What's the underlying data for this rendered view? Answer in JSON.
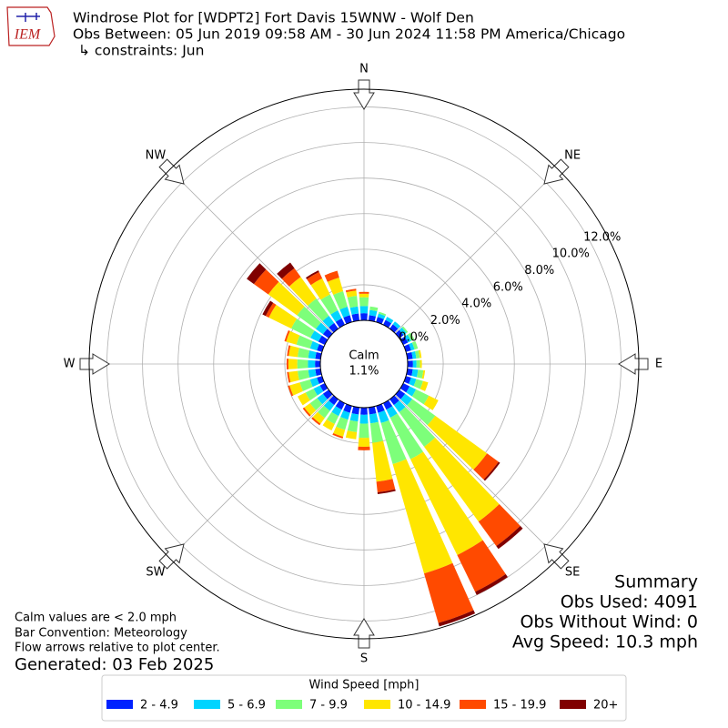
{
  "chart_data": {
    "type": "windrose",
    "logo_text": "IEM",
    "title": [
      "Windrose Plot for [WDPT2] Fort Davis 15WNW - Wolf Den",
      "Obs Between: 05 Jun 2019 09:58 AM - 30 Jun 2024 11:58 PM America/Chicago",
      "↳ constraints: Jun"
    ],
    "x": [
      0,
      10,
      20,
      30,
      40,
      50,
      60,
      70,
      80,
      90,
      100,
      110,
      120,
      130,
      140,
      150,
      160,
      170,
      180,
      190,
      200,
      210,
      220,
      230,
      240,
      250,
      260,
      270,
      280,
      290,
      300,
      310,
      320,
      330,
      340,
      350
    ],
    "xlim": [
      0,
      360
    ],
    "xticks": [
      {
        "value": 0,
        "label": "N"
      },
      {
        "value": 45,
        "label": "NE"
      },
      {
        "value": 90,
        "label": "E"
      },
      {
        "value": 135,
        "label": "SE"
      },
      {
        "value": 180,
        "label": "S"
      },
      {
        "value": 225,
        "label": "SW"
      },
      {
        "value": 270,
        "label": "W"
      },
      {
        "value": 315,
        "label": "NW"
      }
    ],
    "ylim": [
      0,
      13
    ],
    "yticks": [
      {
        "value": 0,
        "label": "0.0%"
      },
      {
        "value": 2,
        "label": "2.0%"
      },
      {
        "value": 4,
        "label": "4.0%"
      },
      {
        "value": 6,
        "label": "6.0%"
      },
      {
        "value": 8,
        "label": "8.0%"
      },
      {
        "value": 10,
        "label": "10.0%"
      },
      {
        "value": 12,
        "label": "12.0%"
      }
    ],
    "grid": true,
    "calm": {
      "label": "Calm",
      "value": 1.1,
      "value_label": "1.1%"
    },
    "legend_title": "Wind Speed [mph]",
    "series": [
      {
        "name": "2 - 4.9",
        "color": "#0022ff",
        "values": [
          0.4,
          0.3,
          0.3,
          0.3,
          0.3,
          0.3,
          0.3,
          0.3,
          0.3,
          0.3,
          0.3,
          0.3,
          0.4,
          0.4,
          0.4,
          0.4,
          0.4,
          0.4,
          0.4,
          0.4,
          0.4,
          0.4,
          0.4,
          0.4,
          0.3,
          0.3,
          0.3,
          0.3,
          0.3,
          0.3,
          0.4,
          0.4,
          0.4,
          0.4,
          0.4,
          0.4
        ]
      },
      {
        "name": "5 - 6.9",
        "color": "#00d4ff",
        "values": [
          0.4,
          0.3,
          0.2,
          0.2,
          0.2,
          0.2,
          0.2,
          0.2,
          0.2,
          0.2,
          0.3,
          0.3,
          0.4,
          0.5,
          0.5,
          0.5,
          0.6,
          0.5,
          0.5,
          0.4,
          0.4,
          0.4,
          0.4,
          0.4,
          0.4,
          0.4,
          0.4,
          0.4,
          0.4,
          0.4,
          0.5,
          0.5,
          0.5,
          0.5,
          0.5,
          0.4
        ]
      },
      {
        "name": "7 - 9.9",
        "color": "#7dff7a",
        "values": [
          0.5,
          0.2,
          0.1,
          0,
          0,
          0.1,
          0.2,
          0.2,
          0.2,
          0.2,
          0.3,
          0.4,
          0.8,
          1.6,
          2.4,
          2.6,
          2.4,
          1.1,
          0.8,
          0.6,
          0.6,
          0.5,
          0.5,
          0.5,
          0.5,
          0.6,
          0.6,
          0.6,
          0.6,
          0.8,
          1.2,
          1.3,
          1.2,
          1.0,
          0.9,
          0.6
        ]
      },
      {
        "name": "10 - 14.9",
        "color": "#ffe600",
        "values": [
          0.2,
          0,
          0,
          0,
          0,
          0,
          0,
          0,
          0.1,
          0.1,
          0.1,
          0.3,
          0.6,
          3.6,
          5.2,
          6.0,
          6.4,
          2.2,
          0.5,
          0.4,
          0.4,
          0.4,
          0.4,
          0.4,
          0.5,
          0.6,
          0.5,
          0.5,
          0.5,
          0.6,
          1.4,
          2.0,
          1.5,
          1.0,
          0.8,
          0.3
        ]
      },
      {
        "name": "15 - 19.9",
        "color": "#ff4a00",
        "values": [
          0.1,
          0,
          0,
          0,
          0,
          0,
          0,
          0,
          0,
          0,
          0,
          0,
          0,
          0.8,
          1.7,
          2.3,
          2.9,
          0.6,
          0.2,
          0,
          0.1,
          0,
          0.1,
          0.1,
          0,
          0.1,
          0.1,
          0.1,
          0.1,
          0.1,
          0.2,
          1.0,
          0.6,
          0.4,
          0.4,
          0.1
        ]
      },
      {
        "name": "20+",
        "color": "#800000",
        "values": [
          0,
          0,
          0,
          0,
          0,
          0,
          0,
          0,
          0,
          0,
          0,
          0,
          0,
          0.1,
          0.2,
          0.2,
          0.2,
          0.1,
          0,
          0,
          0,
          0,
          0,
          0,
          0,
          0,
          0,
          0,
          0,
          0,
          0.2,
          0.5,
          0.4,
          0.1,
          0,
          0
        ]
      }
    ],
    "notes": [
      "Calm values are < 2.0 mph",
      "Bar Convention: Meteorology",
      "Flow arrows relative to plot center."
    ],
    "generated": "Generated: 03 Feb 2025",
    "summary": [
      "Summary",
      "Obs Used: 4091",
      "Obs Without Wind: 0",
      "Avg Speed: 10.3 mph"
    ]
  }
}
